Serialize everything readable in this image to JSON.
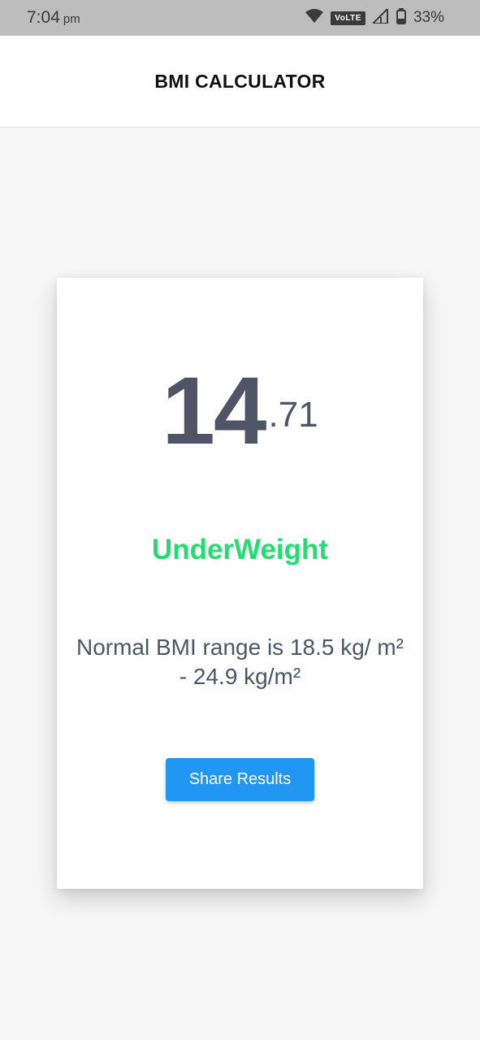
{
  "status_bar": {
    "time": "7:04",
    "ampm": "pm",
    "volte": "VoLTE",
    "battery_percent": "33%",
    "icons": [
      "wifi-icon",
      "signal-icon",
      "battery-icon"
    ]
  },
  "app_bar": {
    "title": "BMI CALCULATOR"
  },
  "result": {
    "bmi_integer": "14",
    "bmi_decimal": ".71",
    "category": "UnderWeight",
    "range_text": "Normal BMI range is 18.5 kg/ m² - 24.9 kg/m²",
    "share_label": "Share Results"
  },
  "colors": {
    "category": "#22dd70",
    "button": "#2196f3",
    "text": "#505467"
  }
}
